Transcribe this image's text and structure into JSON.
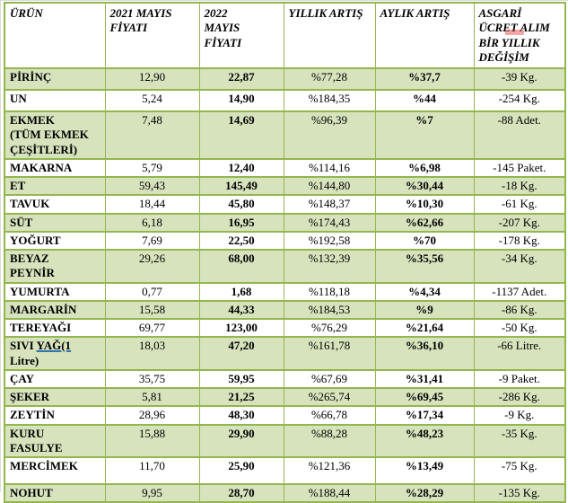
{
  "colors": {
    "table_border": "#94b64e",
    "row_shade": "#d6e3bc",
    "text": "#000000",
    "underline_blue": "#2e75b6",
    "artifact_red": "#e43c3c"
  },
  "table": {
    "headers": [
      "ÜRÜN",
      "2021 MAYIS\nFİYATI",
      "2022\nMAYIS\nFİYATI",
      "YILLIK ARTIŞ",
      "AYLIK ARTIŞ",
      "ASGARİ\nÜCRET ALIM\nBİR YILLIK\nDEĞİŞİM"
    ],
    "rows": [
      {
        "product": "PİRİNÇ",
        "price_2021": "12,90",
        "price_2022": "22,87",
        "yearly_increase": "%77,28",
        "monthly_increase": "%37,7",
        "wage_change": "-39 Kg.",
        "shaded": true
      },
      {
        "product": "UN",
        "price_2021": "5,24",
        "price_2022": "14,90",
        "yearly_increase": "%184,35",
        "monthly_increase": "%44",
        "wage_change": "-254 Kg.",
        "shaded": false
      },
      {
        "product": "EKMEK\n(TÜM EKMEK ÇEŞİTLERİ)",
        "price_2021": "7,48",
        "price_2022": "14,69",
        "yearly_increase": "%96,39",
        "monthly_increase": "%7",
        "wage_change": "-88 Adet.",
        "shaded": true
      },
      {
        "product": "MAKARNA",
        "price_2021": "5,79",
        "price_2022": "12,40",
        "yearly_increase": "%114,16",
        "monthly_increase": "%6,98",
        "wage_change": "-145 Paket.",
        "shaded": false
      },
      {
        "product": "ET",
        "price_2021": "59,43",
        "price_2022": "145,49",
        "yearly_increase": "%144,80",
        "monthly_increase": "%30,44",
        "wage_change": "-18 Kg.",
        "shaded": true
      },
      {
        "product": "TAVUK",
        "price_2021": "18,44",
        "price_2022": "45,80",
        "yearly_increase": "%148,37",
        "monthly_increase": "%10,30",
        "wage_change": "-61 Kg.",
        "shaded": false
      },
      {
        "product": "SÜT",
        "price_2021": "6,18",
        "price_2022": "16,95",
        "yearly_increase": "%174,43",
        "monthly_increase": "%62,66",
        "wage_change": "-207 Kg.",
        "shaded": true
      },
      {
        "product": "YOĞURT",
        "price_2021": "7,69",
        "price_2022": "22,50",
        "yearly_increase": "%192,58",
        "monthly_increase": "%70",
        "wage_change": "-178 Kg.",
        "shaded": false
      },
      {
        "product": "BEYAZ\nPEYNİR",
        "price_2021": "29,26",
        "price_2022": "68,00",
        "yearly_increase": "%132,39",
        "monthly_increase": "%35,56",
        "wage_change": "-34 Kg.",
        "shaded": true
      },
      {
        "product": "YUMURTA",
        "price_2021": "0,77",
        "price_2022": "1,68",
        "yearly_increase": "%118,18",
        "monthly_increase": "%4,34",
        "wage_change": "-1137 Adet.",
        "shaded": false
      },
      {
        "product": "MARGARİN",
        "price_2021": "15,58",
        "price_2022": "44,33",
        "yearly_increase": "%184,53",
        "monthly_increase": "%9",
        "wage_change": "-86 Kg.",
        "shaded": true
      },
      {
        "product": "TEREYAĞI",
        "price_2021": "69,77",
        "price_2022": "123,00",
        "yearly_increase": "%76,29",
        "monthly_increase": "%21,64",
        "wage_change": "-50 Kg.",
        "shaded": false
      },
      {
        "product": "SIVI YAĞ(1 Litre)",
        "product_parts": {
          "before": "SIVI ",
          "underlined": "YAĞ(1",
          "after": " Litre)"
        },
        "price_2021": "18,03",
        "price_2022": "47,20",
        "yearly_increase": "%161,78",
        "monthly_increase": "%36,10",
        "wage_change": "-66 Litre.",
        "shaded": true
      },
      {
        "product": "ÇAY",
        "price_2021": "35,75",
        "price_2022": "59,95",
        "yearly_increase": "%67,69",
        "monthly_increase": "%31,41",
        "wage_change": "-9 Paket.",
        "shaded": false
      },
      {
        "product": "ŞEKER",
        "price_2021": "5,81",
        "price_2022": "21,25",
        "yearly_increase": "%265,74",
        "monthly_increase": "%69,45",
        "wage_change": "-286 Kg.",
        "shaded": true
      },
      {
        "product": "ZEYTİN",
        "price_2021": "28,96",
        "price_2022": "48,30",
        "yearly_increase": "%66,78",
        "monthly_increase": "%17,34",
        "wage_change": "-9 Kg.",
        "shaded": false
      },
      {
        "product": "KURU\nFASULYE",
        "price_2021": "15,88",
        "price_2022": "29,90",
        "yearly_increase": "%88,28",
        "monthly_increase": "%48,23",
        "wage_change": "-35 Kg.",
        "shaded": true
      },
      {
        "product": "MERCİMEK",
        "price_2021": "11,70",
        "price_2022": "25,90",
        "yearly_increase": "%121,36",
        "monthly_increase": "%13,49",
        "wage_change": "-75 Kg.",
        "shaded": false
      },
      {
        "product": "NOHUT",
        "price_2021": "9,95",
        "price_2022": "28,70",
        "yearly_increase": "%188,44",
        "monthly_increase": "%28,29",
        "wage_change": "-135 Kg.",
        "shaded": true
      }
    ]
  }
}
